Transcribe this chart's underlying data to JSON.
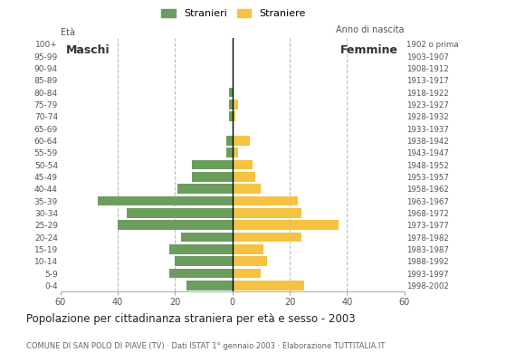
{
  "age_groups": [
    "0-4",
    "5-9",
    "10-14",
    "15-19",
    "20-24",
    "25-29",
    "30-34",
    "35-39",
    "40-44",
    "45-49",
    "50-54",
    "55-59",
    "60-64",
    "65-69",
    "70-74",
    "75-79",
    "80-84",
    "85-89",
    "90-94",
    "95-99",
    "100+"
  ],
  "birth_years": [
    "1998-2002",
    "1993-1997",
    "1988-1992",
    "1983-1987",
    "1978-1982",
    "1973-1977",
    "1968-1972",
    "1963-1967",
    "1958-1962",
    "1953-1957",
    "1948-1952",
    "1943-1947",
    "1938-1942",
    "1933-1937",
    "1928-1932",
    "1923-1927",
    "1918-1922",
    "1913-1917",
    "1908-1912",
    "1903-1907",
    "1902 o prima"
  ],
  "males": [
    16,
    22,
    20,
    22,
    18,
    40,
    37,
    47,
    19,
    14,
    14,
    2,
    2,
    0,
    1,
    1,
    1,
    0,
    0,
    0,
    0
  ],
  "females": [
    25,
    10,
    12,
    11,
    24,
    37,
    24,
    23,
    10,
    8,
    7,
    2,
    6,
    0,
    1,
    2,
    0,
    0,
    0,
    0,
    0
  ],
  "male_color": "#6b9e5e",
  "female_color": "#f5c242",
  "title": "Popolazione per cittadinanza straniera per età e sesso - 2003",
  "subtitle": "COMUNE DI SAN POLO DI PIAVE (TV) · Dati ISTAT 1° gennaio 2003 · Elaborazione TUTTITALIA.IT",
  "legend_male": "Stranieri",
  "legend_female": "Straniere",
  "xlabel_age": "Età",
  "xlabel_birth": "Anno di nascita",
  "label_males": "Maschi",
  "label_females": "Femmine",
  "xlim": 60,
  "background_color": "#ffffff",
  "grid_color": "#bbbbbb"
}
